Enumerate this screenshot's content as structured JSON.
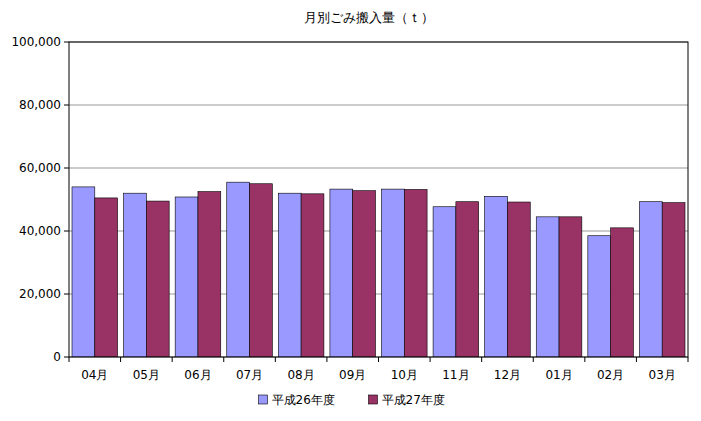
{
  "chart_data": {
    "type": "bar",
    "title": "月別ごみ搬入量（ｔ）",
    "categories": [
      "04月",
      "05月",
      "06月",
      "07月",
      "08月",
      "09月",
      "10月",
      "11月",
      "12月",
      "01月",
      "02月",
      "03月"
    ],
    "series": [
      {
        "name": "平成26年度",
        "color": "#9999ff",
        "values": [
          54000,
          52000,
          50800,
          55500,
          52000,
          53300,
          53300,
          47700,
          51000,
          44500,
          38500,
          49300
        ]
      },
      {
        "name": "平成27年度",
        "color": "#993366",
        "values": [
          50500,
          49500,
          52500,
          55000,
          51800,
          52800,
          53200,
          49300,
          49200,
          44500,
          41000,
          49000
        ]
      }
    ],
    "ylim": [
      0,
      100000
    ],
    "yticks": [
      0,
      {
        "value": 20000,
        "label": "20,000"
      },
      {
        "value": 40000,
        "label": "40,000"
      },
      {
        "value": 60000,
        "label": "60,000"
      },
      {
        "value": 80000,
        "label": "80,000"
      },
      {
        "value": 100000,
        "label": "100,000"
      }
    ],
    "grid": true,
    "legend": "bottom"
  }
}
